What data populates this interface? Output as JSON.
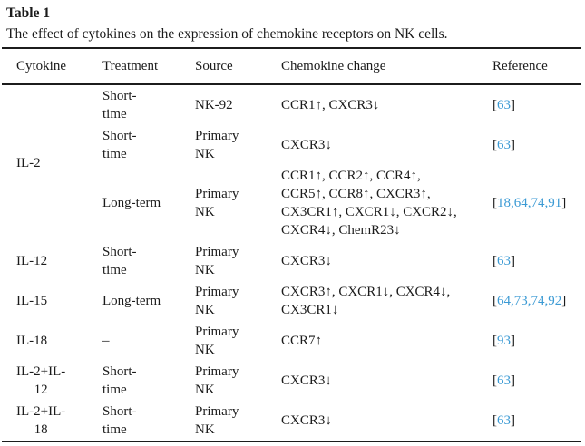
{
  "title": "Table 1",
  "caption": "The effect of cytokines on the expression of chemokine receptors on NK cells.",
  "link_color": "#3b9ad4",
  "text_color": "#1b1b1b",
  "columns": [
    "Cytokine",
    "Treatment",
    "Source",
    "Chemokine change",
    "Reference"
  ],
  "rows": [
    {
      "cytokine": "IL-2",
      "cytokine_rowspan": 3,
      "treatment": "Short-\ntime",
      "source": "NK-92",
      "change": "CCR1↑, CXCR3↓",
      "refs": [
        "63"
      ]
    },
    {
      "treatment": "Short-\ntime",
      "source": "Primary\nNK",
      "change": "CXCR3↓",
      "refs": [
        "63"
      ]
    },
    {
      "treatment": "Long-term",
      "source": "Primary\nNK",
      "change": "CCR1↑, CCR2↑, CCR4↑,\nCCR5↑, CCR8↑, CXCR3↑,\nCX3CR1↑, CXCR1↓, CXCR2↓,\nCXCR4↓, ChemR23↓",
      "refs": [
        "18",
        "64",
        "74",
        "91"
      ]
    },
    {
      "cytokine": "IL-12",
      "cytokine_rowspan": 1,
      "treatment": "Short-\ntime",
      "source": "Primary\nNK",
      "change": "CXCR3↓",
      "refs": [
        "63"
      ]
    },
    {
      "cytokine": "IL-15",
      "cytokine_rowspan": 1,
      "treatment": "Long-term",
      "source": "Primary\nNK",
      "change": "CXCR3↑, CXCR1↓, CXCR4↓,\nCX3CR1↓",
      "refs": [
        "64",
        "73",
        "74",
        "92"
      ]
    },
    {
      "cytokine": "IL-18",
      "cytokine_rowspan": 1,
      "treatment": "–",
      "source": "Primary\nNK",
      "change": "CCR7↑",
      "refs": [
        "93"
      ]
    },
    {
      "cytokine": "IL-2+IL-\n12",
      "cytokine_rowspan": 1,
      "treatment": "Short-\ntime",
      "source": "Primary\nNK",
      "change": "CXCR3↓",
      "refs": [
        "63"
      ]
    },
    {
      "cytokine": "IL-2+IL-\n18",
      "cytokine_rowspan": 1,
      "treatment": "Short-\ntime",
      "source": "Primary\nNK",
      "change": "CXCR3↓",
      "refs": [
        "63"
      ]
    }
  ]
}
